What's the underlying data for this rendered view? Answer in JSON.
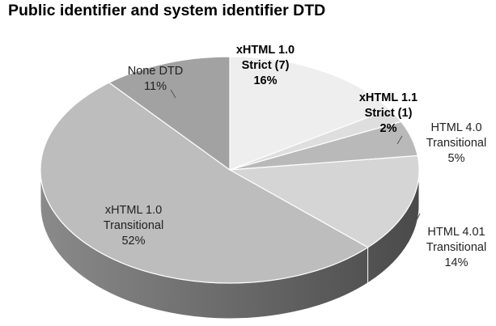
{
  "chart_data": {
    "type": "pie",
    "title": "Public identifier and system identifier DTD",
    "slices": [
      {
        "label_lines": [
          "xHTML 1.0",
          "Strict (7)",
          "16%"
        ],
        "value": 16,
        "color": "#eeeeee",
        "bold": true
      },
      {
        "label_lines": [
          "xHTML 1.1",
          "Strict (1)",
          "2%"
        ],
        "value": 2,
        "color": "#dedede",
        "bold": true
      },
      {
        "label_lines": [
          "HTML 4.0",
          "Transitional",
          "5%"
        ],
        "value": 5,
        "color": "#b9b9b9",
        "bold": false
      },
      {
        "label_lines": [
          "HTML 4.01",
          "Transitional",
          "14%"
        ],
        "value": 14,
        "color": "#d5d5d5",
        "bold": false
      },
      {
        "label_lines": [
          "xHTML 1.0",
          "Transitional",
          "52%"
        ],
        "value": 52,
        "color": "#bdbdbd",
        "bold": false
      },
      {
        "label_lines": [
          "None DTD",
          "11%"
        ],
        "value": 11,
        "color": "#a2a2a2",
        "bold": false
      }
    ],
    "style": "3d-pie",
    "legend": "none"
  }
}
